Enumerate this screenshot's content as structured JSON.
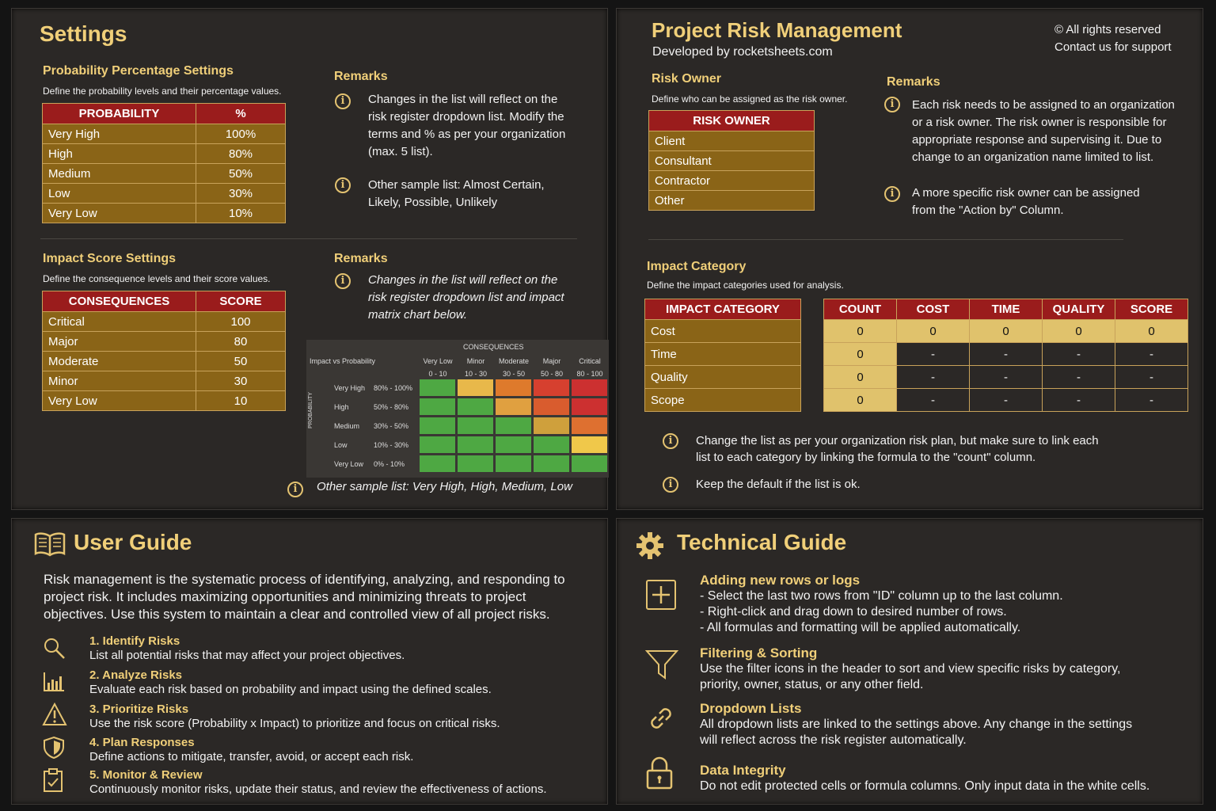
{
  "settings": {
    "title": "Settings",
    "probability": {
      "heading": "Probability Percentage Settings",
      "subtitle": "Define the probability levels and their percentage values.",
      "col1": "PROBABILITY",
      "col2": "%",
      "rows": [
        {
          "label": "Very High",
          "value": "100%"
        },
        {
          "label": "High",
          "value": "80%"
        },
        {
          "label": "Medium",
          "value": "50%"
        },
        {
          "label": "Low",
          "value": "30%"
        },
        {
          "label": "Very Low",
          "value": "10%"
        }
      ],
      "remarks_heading": "Remarks",
      "remark1": "Changes in the list will reflect on the risk register dropdown list. Modify the terms and % as per your organization (max. 5 list).",
      "remark2": "Other sample list: Almost Certain, Likely, Possible, Unlikely"
    },
    "impact": {
      "heading": "Impact Score Settings",
      "subtitle": "Define the consequence levels and their score values.",
      "col1": "CONSEQUENCES",
      "col2": "SCORE",
      "rows": [
        {
          "label": "Critical",
          "value": "100"
        },
        {
          "label": "Major",
          "value": "80"
        },
        {
          "label": "Moderate",
          "value": "50"
        },
        {
          "label": "Minor",
          "value": "30"
        },
        {
          "label": "Very Low",
          "value": "10"
        }
      ],
      "remarks_heading": "Remarks",
      "remark1": "Changes in the list will reflect on the risk register dropdown list and impact matrix chart below.",
      "remark2": "Other sample list: Very High, High, Medium, Low"
    },
    "matrix": {
      "consequences_label": "CONSEQUENCES",
      "corner_label": "Impact vs Probability",
      "axis_label": "PROBABILITY",
      "columns": [
        {
          "name": "Very Low",
          "range": "0 - 10"
        },
        {
          "name": "Minor",
          "range": "10 - 30"
        },
        {
          "name": "Moderate",
          "range": "30 - 50"
        },
        {
          "name": "Major",
          "range": "50 - 80"
        },
        {
          "name": "Critical",
          "range": "80 - 100"
        }
      ],
      "rows": [
        {
          "name": "Very High",
          "range": "80% - 100%",
          "colors": [
            "#4ea843",
            "#e8b84a",
            "#de7a2c",
            "#d6402f",
            "#cc3030"
          ]
        },
        {
          "name": "High",
          "range": "50% - 80%",
          "colors": [
            "#4ea843",
            "#4ea843",
            "#e0a040",
            "#d95c2e",
            "#cc3030"
          ]
        },
        {
          "name": "Medium",
          "range": "30% - 50%",
          "colors": [
            "#4ea843",
            "#4ea843",
            "#4ea843",
            "#cfa03c",
            "#de7030"
          ]
        },
        {
          "name": "Low",
          "range": "10% - 30%",
          "colors": [
            "#4ea843",
            "#4ea843",
            "#4ea843",
            "#4ea843",
            "#f0c84a"
          ]
        },
        {
          "name": "Very Low",
          "range": "0% - 10%",
          "colors": [
            "#4ea843",
            "#4ea843",
            "#4ea843",
            "#4ea843",
            "#4ea843"
          ]
        }
      ]
    }
  },
  "risk": {
    "title": "Project Risk Management",
    "developed_by": "Developed by rocketsheets.com",
    "rights": "© All rights reserved",
    "contact": "Contact us for support",
    "owner": {
      "heading": "Risk Owner",
      "subtitle": "Define who can be assigned as the risk owner.",
      "col": "RISK OWNER",
      "rows": [
        "Client",
        "Consultant",
        "Contractor",
        "Other"
      ],
      "remarks_heading": "Remarks",
      "remark1": "Each risk needs to be assigned to an organization or a risk owner. The risk owner is responsible for appropriate response and supervising it. Due to change to an organization name limited to list.",
      "remark2": "A more specific risk owner can be assigned from the \"Action by\" Column."
    },
    "category": {
      "heading": "Impact Category",
      "subtitle": "Define the impact categories used for analysis.",
      "col": "IMPACT CATEGORY",
      "rows": [
        "Cost",
        "Time",
        "Quality",
        "Scope"
      ],
      "count_headers": [
        "COUNT",
        "COST",
        "TIME",
        "QUALITY",
        "SCORE"
      ],
      "count_rows": [
        [
          "0",
          "0",
          "0",
          "0",
          "0"
        ],
        [
          "0",
          "-",
          "-",
          "-",
          "-"
        ],
        [
          "0",
          "-",
          "-",
          "-",
          "-"
        ],
        [
          "0",
          "-",
          "-",
          "-",
          "-"
        ]
      ],
      "note1": "Change the list as per your organization risk plan, but make sure to link each list to each category by linking the formula to the \"count\" column.",
      "note2": "Keep the default if the list is ok."
    }
  },
  "user_guide": {
    "title": "User Guide",
    "intro": "Risk management is the systematic process of identifying, analyzing, and responding to project risk. It includes maximizing opportunities and minimizing threats to project objectives. Use this system to maintain a clear and controlled view of all project risks.",
    "steps": [
      {
        "icon": "magnifier-icon",
        "title": "1. Identify Risks",
        "desc": "List all potential risks that may affect your project objectives."
      },
      {
        "icon": "bar-chart-icon",
        "title": "2. Analyze Risks",
        "desc": "Evaluate each risk based on probability and impact using the defined scales."
      },
      {
        "icon": "warning-icon",
        "title": "3. Prioritize Risks",
        "desc": "Use the risk score (Probability x Impact) to prioritize and focus on critical risks."
      },
      {
        "icon": "shield-icon",
        "title": "4. Plan Responses",
        "desc": "Define actions to mitigate, transfer, avoid, or accept each risk."
      },
      {
        "icon": "clipboard-icon",
        "title": "5. Monitor & Review",
        "desc": "Continuously monitor risks, update their status, and review the effectiveness of actions."
      }
    ]
  },
  "tech_guide": {
    "title": "Technical Guide",
    "items": [
      {
        "icon": "plus-box-icon",
        "title": "Adding new rows or logs",
        "lines": [
          "- Select the last two rows from \"ID\" column up to the last column.",
          "- Right-click and drag down to desired number of rows.",
          "- All formulas and formatting will be applied automatically."
        ]
      },
      {
        "icon": "filter-icon",
        "title": "Filtering & Sorting",
        "lines": [
          "Use the filter icons in the header to sort and view specific risks by category,",
          "priority, owner, status, or any other field."
        ]
      },
      {
        "icon": "link-icon",
        "title": "Dropdown Lists",
        "lines": [
          "All dropdown lists are linked to the settings above. Any change in the settings",
          "will reflect across the risk register automatically."
        ]
      },
      {
        "icon": "lock-icon",
        "title": "Data Integrity",
        "lines": [
          "Do not edit protected cells or formula columns. Only input data in the white cells."
        ]
      }
    ]
  }
}
